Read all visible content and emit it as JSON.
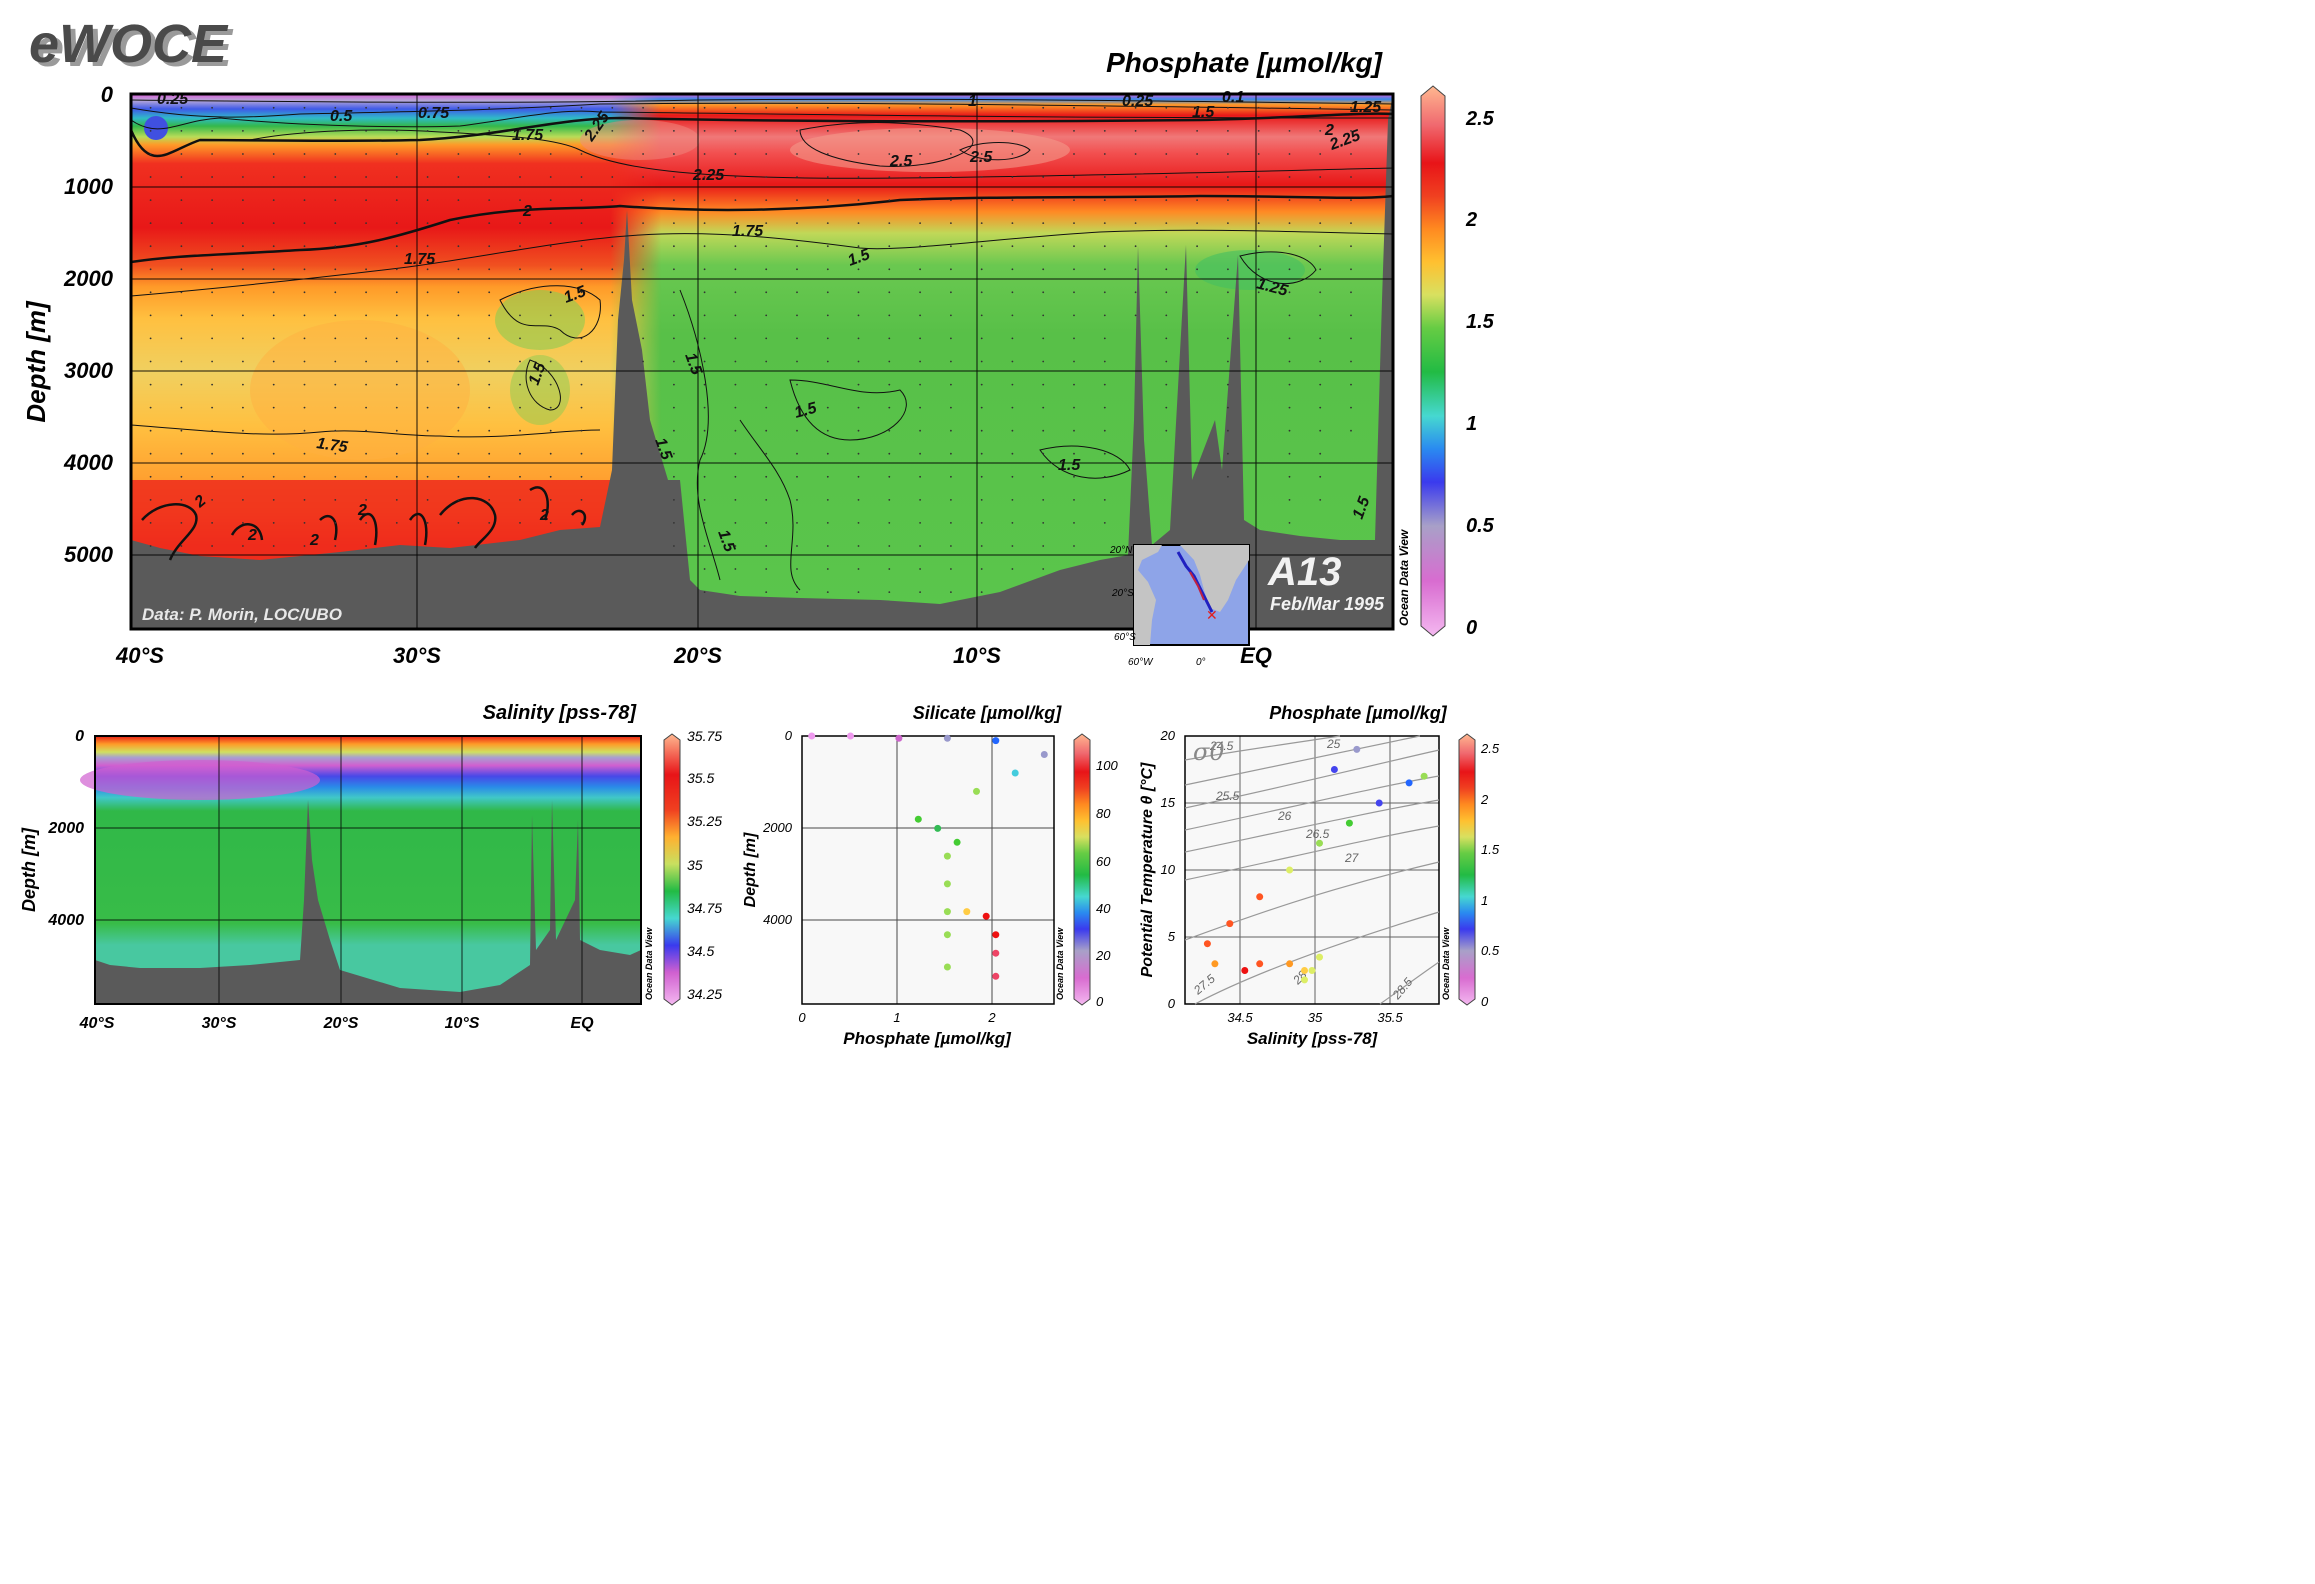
{
  "brand": "eWOCE",
  "colors": {
    "bathymetry": "#5a5a5a",
    "frame": "#000000",
    "scale": [
      "#ee99ee",
      "#cc66cc",
      "#9999cc",
      "#4444ee",
      "#2266ff",
      "#44ccdd",
      "#33bb55",
      "#44cc33",
      "#99dd55",
      "#ddee66",
      "#ffcc44",
      "#ff9922",
      "#ff5522",
      "#ee1111",
      "#ee4466",
      "#ffaa88"
    ]
  },
  "main": {
    "title": "Phosphate [µmol/kg]",
    "ylabel": "Depth [m]",
    "yticks": [
      "0",
      "1000",
      "2000",
      "3000",
      "4000",
      "5000"
    ],
    "xticks": [
      "40°S",
      "30°S",
      "20°S",
      "10°S",
      "EQ"
    ],
    "credit": "Data: P. Morin, LOC/UBO",
    "section": "A13",
    "date": "Feb/Mar 1995",
    "odv": "Ocean Data View",
    "colorbar_ticks": [
      "2.5",
      "2",
      "1.5",
      "1",
      "0.5",
      "0"
    ],
    "contour_labels": [
      "0.25",
      "0.5",
      "0.75",
      "1.75",
      "2.25",
      "0.25",
      "0.1",
      "1.5",
      "1.25",
      "2",
      "2.25",
      "2.5",
      "2.5",
      "2.25",
      "2",
      "1.75",
      "1.75",
      "1.5",
      "1.5",
      "1.25",
      "1.5",
      "1.5",
      "1.5",
      "1.5",
      "1.75",
      "1.5",
      "1.5",
      "2",
      "2",
      "2",
      "2",
      "2",
      "1.5",
      "1"
    ],
    "inset_map_labels": [
      "20°N",
      "20°S",
      "60°S",
      "60°W",
      "0°"
    ]
  },
  "sal": {
    "title": "Salinity [pss-78]",
    "ylabel": "Depth [m]",
    "yticks": [
      "0",
      "2000",
      "4000"
    ],
    "xticks": [
      "40°S",
      "30°S",
      "20°S",
      "10°S",
      "EQ"
    ],
    "colorbar_ticks": [
      "35.75",
      "35.5",
      "35.25",
      "35",
      "34.75",
      "34.5",
      "34.25"
    ],
    "odv": "Ocean Data View"
  },
  "sil": {
    "title": "Silicate [µmol/kg]",
    "ylabel": "Depth [m]",
    "xlabel": "Phosphate [µmol/kg]",
    "yticks": [
      "0",
      "2000",
      "4000"
    ],
    "xticks": [
      "0",
      "1",
      "2"
    ],
    "colorbar_ticks": [
      "100",
      "80",
      "60",
      "40",
      "20",
      "0"
    ],
    "odv": "Ocean Data View"
  },
  "ts": {
    "title": "Phosphate [µmol/kg]",
    "ylabel": "Potential Temperature θ [°C]",
    "xlabel": "Salinity [pss-78]",
    "yticks": [
      "20",
      "15",
      "10",
      "5",
      "0"
    ],
    "xticks": [
      "34.5",
      "35",
      "35.5"
    ],
    "sigma_label": "σ0",
    "isopycnal_labels": [
      "24.5",
      "25",
      "25.5",
      "26",
      "26.5",
      "27",
      "27.5",
      "28",
      "28.5"
    ],
    "colorbar_ticks": [
      "2.5",
      "2",
      "1.5",
      "1",
      "0.5",
      "0"
    ],
    "odv": "Ocean Data View"
  },
  "chart_data": [
    {
      "type": "heatmap",
      "title": "Phosphate [µmol/kg]",
      "xlabel": "",
      "ylabel": "Depth [m]",
      "x": [
        -40,
        -30,
        -20,
        -10,
        0
      ],
      "xtick_labels": [
        "40°S",
        "30°S",
        "20°S",
        "10°S",
        "EQ"
      ],
      "ylim": [
        5800,
        0
      ],
      "clim": [
        0,
        2.6
      ],
      "depths": [
        0,
        100,
        300,
        600,
        1000,
        1500,
        2000,
        3000,
        4000,
        5000
      ],
      "profiles": [
        {
          "lat": -40,
          "values": [
            0.3,
            0.8,
            1.6,
            2.0,
            2.1,
            2.05,
            1.7,
            1.7,
            1.75,
            2.1
          ]
        },
        {
          "lat": -30,
          "values": [
            0.3,
            0.6,
            1.2,
            2.0,
            2.1,
            2.0,
            1.65,
            1.6,
            1.7,
            2.1
          ]
        },
        {
          "lat": -20,
          "values": [
            0.4,
            1.7,
            2.3,
            2.4,
            2.1,
            1.8,
            1.5,
            1.45,
            1.45,
            1.45
          ]
        },
        {
          "lat": -10,
          "values": [
            0.5,
            1.9,
            2.5,
            2.5,
            2.1,
            1.6,
            1.45,
            1.4,
            1.4,
            1.4
          ]
        },
        {
          "lat": 0,
          "values": [
            0.3,
            1.5,
            2.3,
            2.2,
            2.0,
            1.5,
            1.35,
            1.35,
            1.4,
            1.4
          ]
        }
      ],
      "bathymetry": [
        [
          -40.3,
          5200
        ],
        [
          -39,
          5100
        ],
        [
          -35,
          5100
        ],
        [
          -30,
          4900
        ],
        [
          -25,
          4850
        ],
        [
          -24,
          4820
        ],
        [
          -23,
          2400
        ],
        [
          -22.6,
          1500
        ],
        [
          -22,
          3000
        ],
        [
          -21,
          5100
        ],
        [
          -20.5,
          5500
        ],
        [
          -19,
          5500
        ],
        [
          -15,
          5500
        ],
        [
          -10,
          5550
        ],
        [
          -7,
          5200
        ],
        [
          -5,
          4800
        ],
        [
          -4.2,
          1700
        ],
        [
          -3,
          4700
        ],
        [
          -2,
          1800
        ],
        [
          -1,
          4500
        ],
        [
          -0.2,
          1700
        ],
        [
          1,
          4800
        ],
        [
          3,
          4600
        ],
        [
          4.3,
          1300
        ]
      ]
    },
    {
      "type": "heatmap",
      "title": "Salinity [pss-78]",
      "xlabel": "",
      "ylabel": "Depth [m]",
      "x": [
        -40,
        -30,
        -20,
        -10,
        0
      ],
      "ylim": [
        5800,
        0
      ],
      "clim": [
        34.2,
        35.8
      ],
      "depths": [
        0,
        200,
        500,
        800,
        1200,
        2000,
        4000,
        5000
      ],
      "profiles": [
        {
          "lat": -40,
          "values": [
            35.3,
            34.6,
            34.3,
            34.4,
            34.5,
            34.75,
            34.75,
            34.72
          ]
        },
        {
          "lat": -20,
          "values": [
            35.6,
            35.2,
            34.5,
            34.4,
            34.55,
            34.9,
            34.88,
            34.88
          ]
        },
        {
          "lat": 0,
          "values": [
            35.7,
            35.0,
            34.6,
            34.5,
            34.6,
            34.92,
            34.9,
            34.9
          ]
        }
      ]
    },
    {
      "type": "scatter",
      "title": "Silicate [µmol/kg]",
      "xlabel": "Phosphate [µmol/kg]",
      "ylabel": "Depth [m]",
      "xlim": [
        0,
        2.6
      ],
      "ylim": [
        5800,
        0
      ],
      "clim": [
        0,
        110
      ],
      "series": [
        {
          "name": "",
          "x": [
            0.1,
            0.5,
            1.0,
            1.5,
            2.0,
            2.5,
            2.2,
            1.8,
            1.2,
            1.4,
            1.6,
            1.5,
            1.5,
            1.5,
            1.5,
            1.5,
            1.7,
            1.9,
            2.0,
            2.0,
            2.0
          ],
          "y": [
            0,
            0,
            50,
            50,
            100,
            400,
            800,
            1200,
            1800,
            2000,
            2300,
            2600,
            3200,
            3800,
            4300,
            5000,
            3800,
            3900,
            4300,
            4700,
            5200
          ],
          "color_values": [
            0,
            5,
            10,
            15,
            30,
            20,
            40,
            55,
            50,
            45,
            50,
            55,
            55,
            55,
            55,
            55,
            75,
            90,
            95,
            100,
            100
          ]
        }
      ]
    },
    {
      "type": "scatter",
      "title": "Phosphate [µmol/kg]",
      "xlabel": "Salinity [pss-78]",
      "ylabel": "Potential Temperature θ [°C]",
      "xlim": [
        34.1,
        35.8
      ],
      "ylim": [
        0,
        20
      ],
      "clim": [
        0,
        2.6
      ],
      "series": [
        {
          "name": "",
          "x": [
            35.7,
            35.6,
            35.4,
            35.2,
            35.0,
            34.8,
            34.6,
            34.4,
            34.25,
            34.3,
            34.5,
            34.6,
            34.8,
            34.9,
            35.0,
            34.95,
            34.9,
            35.25,
            35.1
          ],
          "y": [
            17.0,
            16.5,
            15.0,
            13.5,
            12.0,
            10.0,
            8.0,
            6.0,
            4.5,
            3.0,
            2.5,
            3.0,
            3.0,
            2.5,
            3.5,
            2.5,
            1.8,
            19.0,
            17.5
          ],
          "color_values": [
            1.3,
            0.8,
            0.6,
            1.2,
            1.4,
            1.5,
            2.0,
            2.1,
            2.1,
            1.9,
            2.2,
            2.1,
            1.9,
            1.7,
            1.5,
            1.6,
            1.5,
            0.4,
            0.5
          ]
        }
      ]
    }
  ]
}
